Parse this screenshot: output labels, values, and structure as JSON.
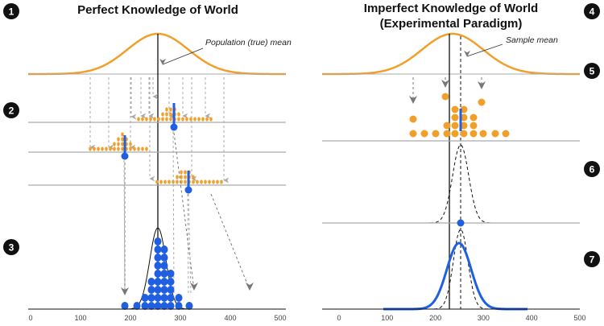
{
  "panels": [
    {
      "title": [
        "Perfect Knowledge of World"
      ],
      "annotation": "Population (true) mean",
      "axis_ticks": [
        0,
        100,
        200,
        300,
        400,
        500
      ]
    },
    {
      "title": [
        "Imperfect Knowledge of World",
        "(Experimental Paradigm)"
      ],
      "annotation": "Sample mean",
      "axis_ticks": [
        0,
        100,
        200,
        300,
        400,
        500
      ]
    }
  ],
  "steps": [
    "1",
    "2",
    "3",
    "4",
    "5",
    "6",
    "7"
  ]
}
